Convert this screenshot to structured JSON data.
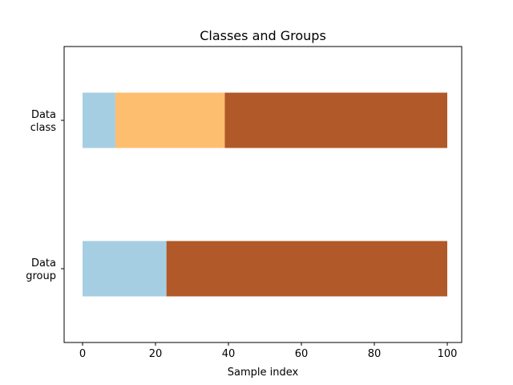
{
  "chart_data": {
    "type": "bar",
    "orientation": "horizontal",
    "title": "Classes and Groups",
    "xlabel": "Sample index",
    "ylabel": "",
    "xlim": [
      -5,
      101
    ],
    "x_ticks": [
      0,
      20,
      40,
      60,
      80,
      100
    ],
    "grid": false,
    "rows": [
      {
        "label": [
          "Data",
          "class"
        ],
        "segments": [
          {
            "start": 0,
            "end": 9,
            "color": "#a6cee3"
          },
          {
            "start": 9,
            "end": 39,
            "color": "#fdbf6f"
          },
          {
            "start": 39,
            "end": 100,
            "color": "#b15928"
          }
        ]
      },
      {
        "label": [
          "Data",
          "group"
        ],
        "segments": [
          {
            "start": 0,
            "end": 23,
            "color": "#a6cee3"
          },
          {
            "start": 23,
            "end": 100,
            "color": "#b15928"
          }
        ]
      }
    ]
  }
}
